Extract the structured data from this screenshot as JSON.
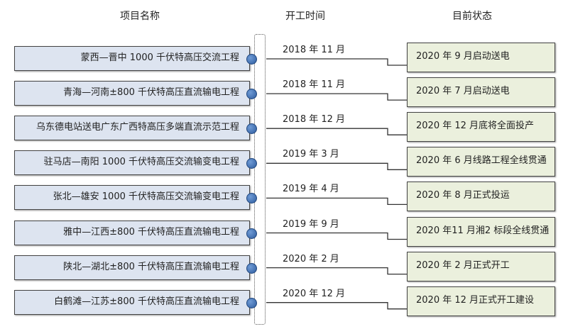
{
  "headers": {
    "project": "项目名称",
    "start": "开工时间",
    "status": "目前状态"
  },
  "rows": [
    {
      "project": "蒙西—晋中 1000 千伏特高压交流工程",
      "start": "2018 年 11 月",
      "status": "2020 年 9 月启动送电"
    },
    {
      "project": "青海—河南±800 千伏特高压直流输电工程",
      "start": "2018 年 11 月",
      "status": "2020 年 7 月启动送电"
    },
    {
      "project": "乌东德电站送电广东广西特高压多端直流示范工程",
      "start": "2018 年 12 月",
      "status": "2020 年 12 月底将全面投产"
    },
    {
      "project": "驻马店—南阳 1000 千伏特高压交流输变电工程",
      "start": "2019 年 3 月",
      "status": "2020 年 6 月线路工程全线贯通"
    },
    {
      "project": "张北—雄安 1000 千伏特高压交流输变电工程",
      "start": "2019 年 4 月",
      "status": "2020 年 8 月正式投运"
    },
    {
      "project": "雅中—江西±800 千伏特高压直流输电工程",
      "start": "2019 年 9 月",
      "status": "2020 年11 月湘2 标段全线贯通"
    },
    {
      "project": "陕北—湖北±800 千伏特高压直流输电工程",
      "start": "2020 年 2 月",
      "status": "2020 年 2 月正式开工"
    },
    {
      "project": "白鹤滩—江苏±800 千伏特高压直流输电工程",
      "start": "2020 年 12 月",
      "status": "2020 年 12 月正式开工建设"
    }
  ],
  "colors": {
    "project_fill": "#dde4f0",
    "status_fill": "#ebf0dd",
    "dot": "#2e5c9e"
  }
}
